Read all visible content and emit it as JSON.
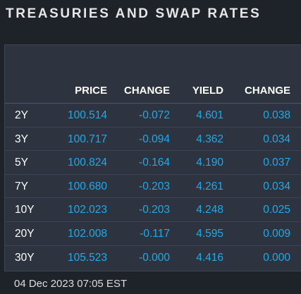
{
  "title": "TREASURIES AND SWAP RATES",
  "columns": {
    "price": "PRICE",
    "change": "CHANGE",
    "yield": "YIELD",
    "change2": "CHANGE"
  },
  "rows": [
    {
      "term": "2Y",
      "price": "100.514",
      "change": "-0.072",
      "yield": "4.601",
      "yield_change": "0.038"
    },
    {
      "term": "3Y",
      "price": "100.717",
      "change": "-0.094",
      "yield": "4.362",
      "yield_change": "0.034"
    },
    {
      "term": "5Y",
      "price": "100.824",
      "change": "-0.164",
      "yield": "4.190",
      "yield_change": "0.037"
    },
    {
      "term": "7Y",
      "price": "100.680",
      "change": "-0.203",
      "yield": "4.261",
      "yield_change": "0.034"
    },
    {
      "term": "10Y",
      "price": "102.023",
      "change": "-0.203",
      "yield": "4.248",
      "yield_change": "0.025"
    },
    {
      "term": "20Y",
      "price": "102.008",
      "change": "-0.117",
      "yield": "4.595",
      "yield_change": "0.009"
    },
    {
      "term": "30Y",
      "price": "105.523",
      "change": "-0.000",
      "yield": "4.416",
      "yield_change": "0.000"
    }
  ],
  "timestamp": "04 Dec 2023 07:05 EST",
  "colors": {
    "background": "#1e232a",
    "panel": "#2d3440",
    "value": "#1fa9e8",
    "header_text": "#ffffff"
  }
}
